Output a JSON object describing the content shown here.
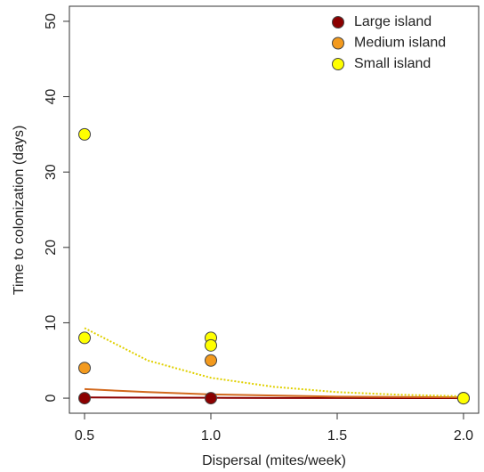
{
  "chart_data": {
    "type": "scatter",
    "x_label": "Dispersal (mites/week)",
    "y_label": "Time to colonization (days)",
    "xlim": [
      0.44,
      2.06
    ],
    "xticks": [
      0.5,
      1.0,
      1.5,
      2.0
    ],
    "ylim": [
      -2,
      52
    ],
    "yticks": [
      0,
      10,
      20,
      30,
      40,
      50
    ],
    "legend": "topright",
    "series": [
      {
        "name": "Large island",
        "color": "#8b0000",
        "x": [
          0.5,
          1.0,
          2.0
        ],
        "values": [
          0,
          0,
          0
        ]
      },
      {
        "name": "Medium island",
        "color": "#f39a1e",
        "x": [
          0.5,
          1.0,
          2.0
        ],
        "values": [
          4,
          5,
          0
        ]
      },
      {
        "name": "Small island",
        "color": "#ffff00",
        "x": [
          0.5,
          0.5,
          1.0,
          1.0,
          2.0
        ],
        "values": [
          35,
          8,
          8,
          7,
          0
        ]
      }
    ],
    "fits": [
      {
        "color": "#8b0000",
        "dashed": false,
        "x": [
          0.5,
          0.75,
          1.0,
          1.25,
          1.5,
          1.75,
          2.0
        ],
        "values": [
          0.1,
          0.07,
          0.05,
          0.03,
          0.02,
          0.01,
          0
        ]
      },
      {
        "color": "#d2691e",
        "dashed": false,
        "x": [
          0.5,
          0.75,
          1.0,
          1.25,
          1.5,
          1.75,
          2.0
        ],
        "values": [
          1.2,
          0.8,
          0.5,
          0.35,
          0.2,
          0.15,
          0.1
        ]
      },
      {
        "color": "#e0d000",
        "dashed": true,
        "x": [
          0.5,
          0.75,
          1.0,
          1.25,
          1.5,
          1.75,
          2.0
        ],
        "values": [
          9.3,
          5.0,
          2.7,
          1.5,
          0.8,
          0.45,
          0.25
        ]
      }
    ]
  }
}
